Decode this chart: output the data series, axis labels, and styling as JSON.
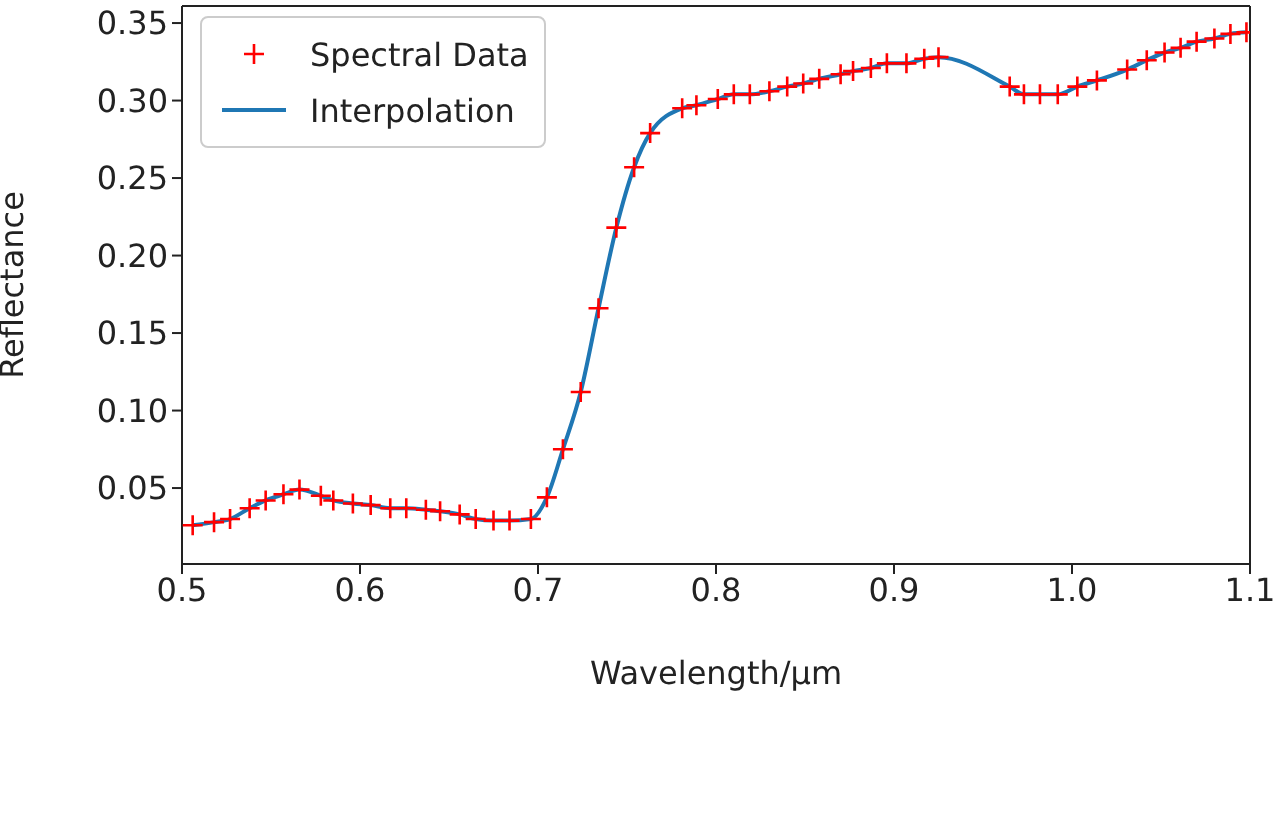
{
  "chart_data": {
    "type": "line",
    "xlabel": "Wavelength/μm",
    "ylabel": "Reflectance",
    "x": [
      0.506,
      0.518,
      0.527,
      0.538,
      0.547,
      0.557,
      0.566,
      0.578,
      0.585,
      0.596,
      0.606,
      0.617,
      0.626,
      0.637,
      0.645,
      0.656,
      0.665,
      0.675,
      0.684,
      0.696,
      0.705,
      0.714,
      0.724,
      0.734,
      0.744,
      0.754,
      0.763,
      0.781,
      0.789,
      0.801,
      0.81,
      0.819,
      0.83,
      0.84,
      0.849,
      0.858,
      0.87,
      0.877,
      0.887,
      0.896,
      0.907,
      0.917,
      0.925,
      0.965,
      0.973,
      0.982,
      0.992,
      1.003,
      1.014,
      1.031,
      1.042,
      1.052,
      1.061,
      1.07,
      1.08,
      1.089,
      1.098
    ],
    "series": [
      {
        "name": "Spectral Data",
        "type": "scatter",
        "marker": "cross",
        "color": "#ff0000",
        "values": [
          0.026,
          0.028,
          0.03,
          0.037,
          0.042,
          0.046,
          0.049,
          0.045,
          0.042,
          0.04,
          0.039,
          0.037,
          0.037,
          0.036,
          0.035,
          0.033,
          0.03,
          0.029,
          0.029,
          0.03,
          0.044,
          0.075,
          0.112,
          0.166,
          0.218,
          0.257,
          0.279,
          0.295,
          0.297,
          0.301,
          0.304,
          0.304,
          0.306,
          0.309,
          0.311,
          0.314,
          0.317,
          0.319,
          0.321,
          0.324,
          0.324,
          0.327,
          0.328,
          0.309,
          0.304,
          0.304,
          0.304,
          0.309,
          0.313,
          0.32,
          0.326,
          0.331,
          0.334,
          0.338,
          0.34,
          0.343,
          0.344
        ]
      },
      {
        "name": "Interpolation",
        "type": "line",
        "marker": "none",
        "line_style": "solid",
        "color": "#1f77b4",
        "values": [
          0.026,
          0.028,
          0.03,
          0.037,
          0.042,
          0.046,
          0.049,
          0.045,
          0.042,
          0.04,
          0.039,
          0.037,
          0.037,
          0.036,
          0.035,
          0.033,
          0.03,
          0.029,
          0.029,
          0.03,
          0.044,
          0.075,
          0.112,
          0.166,
          0.218,
          0.257,
          0.279,
          0.295,
          0.297,
          0.301,
          0.304,
          0.304,
          0.306,
          0.309,
          0.311,
          0.314,
          0.317,
          0.319,
          0.321,
          0.324,
          0.324,
          0.327,
          0.328,
          0.309,
          0.304,
          0.304,
          0.304,
          0.309,
          0.313,
          0.32,
          0.326,
          0.331,
          0.334,
          0.338,
          0.34,
          0.343,
          0.344
        ]
      }
    ],
    "xlim": [
      0.5,
      1.1
    ],
    "xticks": [
      0.5,
      0.6,
      0.7,
      0.8,
      0.9,
      {
        "value": 1,
        "label": "1.0"
      },
      1.1
    ],
    "ylim": [
      0.001,
      0.361
    ],
    "yticks": [
      0.05,
      {
        "value": 0.1,
        "label": "0.10"
      },
      0.15,
      {
        "value": 0.2,
        "label": "0.20"
      },
      0.25,
      {
        "value": 0.3,
        "label": "0.30"
      },
      0.35
    ],
    "legend": "top left",
    "grid": false
  }
}
